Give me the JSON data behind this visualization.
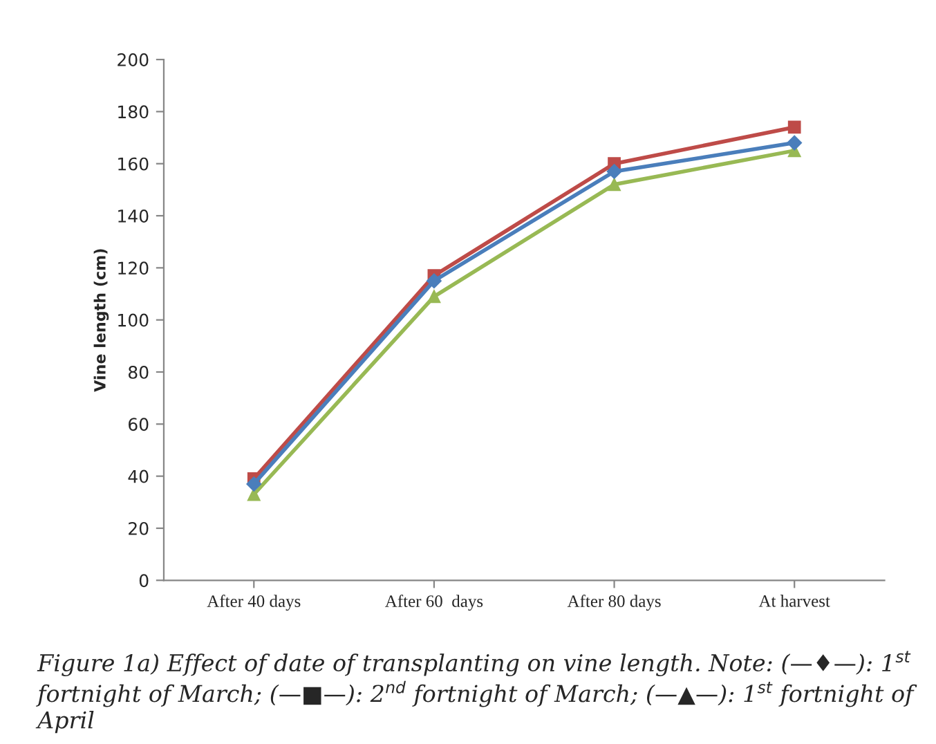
{
  "chart_data": {
    "type": "line",
    "ylabel": "Vine length (cm)",
    "categories": [
      "After 40 days",
      "After 60  days",
      "After 80 days",
      "At harvest"
    ],
    "series": [
      {
        "color": "#4a7ebb",
        "marker": "diamond",
        "values": [
          37,
          115,
          157,
          168
        ]
      },
      {
        "color": "#be4b48",
        "marker": "square",
        "values": [
          39,
          117,
          160,
          174
        ]
      },
      {
        "color": "#98b954",
        "marker": "triangle",
        "values": [
          33,
          109,
          152,
          165
        ]
      }
    ],
    "ylim": [
      0,
      200
    ],
    "yticks": [
      0,
      20,
      40,
      60,
      80,
      100,
      120,
      140,
      160,
      180,
      200
    ],
    "grid": false,
    "legend": false,
    "line_style": "solid",
    "annotations": [
      "Figure 1a) Effect of date of transplanting on vine length. Note: (—♦—): 1$^{st}$ fortnight of March; (—■—): 2$^{nd}$ fortnight of March; (—▲—): 1$^{st}$ fortnight of April"
    ]
  }
}
